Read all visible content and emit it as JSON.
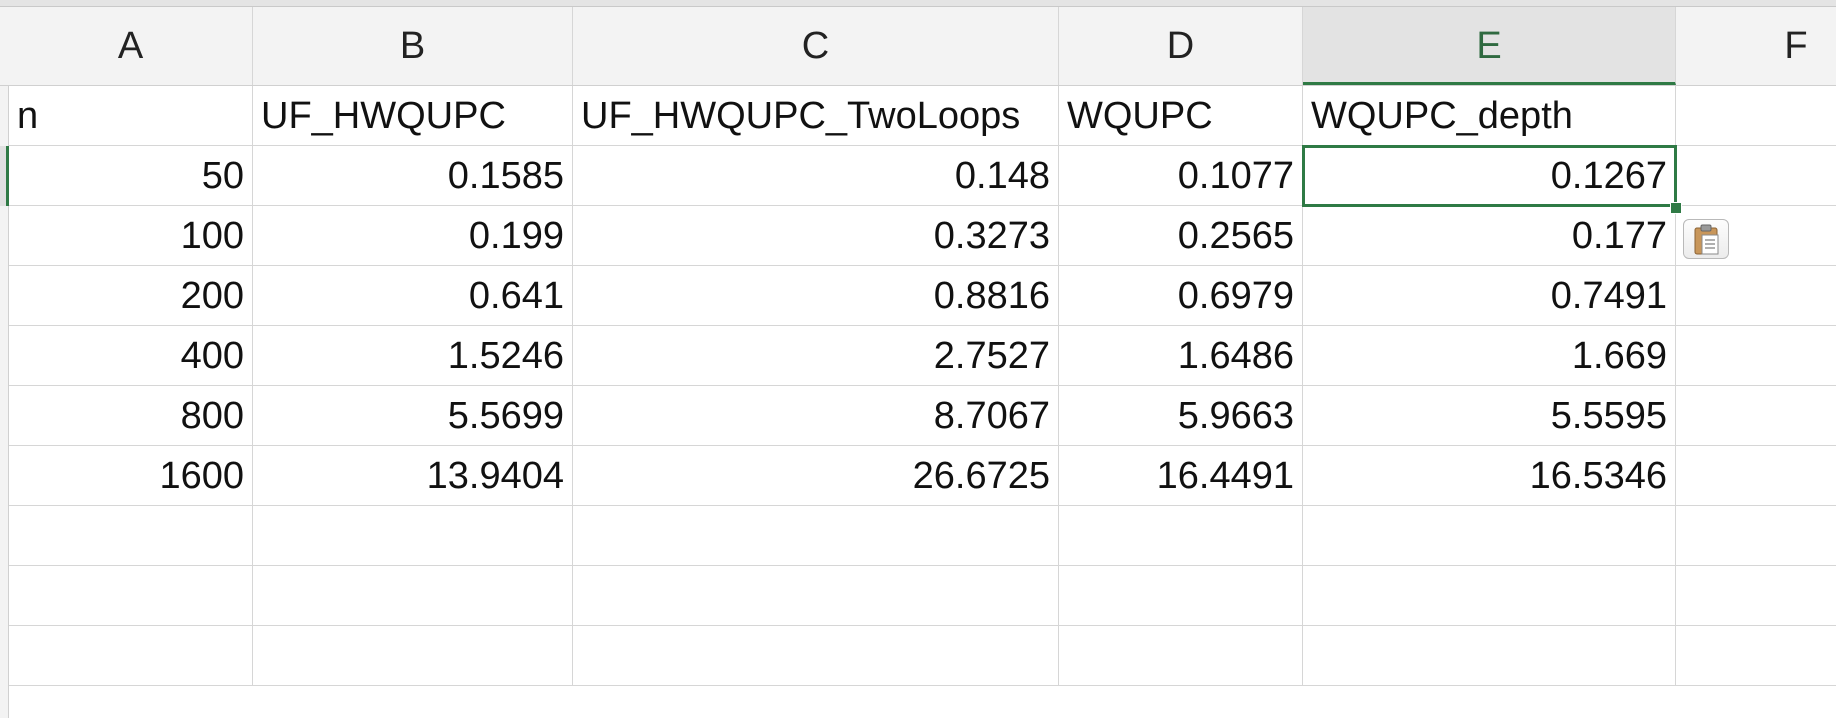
{
  "columns": [
    "A",
    "B",
    "C",
    "D",
    "E",
    "F"
  ],
  "selected_column": "E",
  "rows": [
    [
      "n",
      "UF_HWQUPC",
      "UF_HWQUPC_TwoLoops",
      "WQUPC",
      "WQUPC_depth",
      ""
    ],
    [
      "50",
      "0.1585",
      "0.148",
      "0.1077",
      "0.1267",
      ""
    ],
    [
      "100",
      "0.199",
      "0.3273",
      "0.2565",
      "0.177",
      ""
    ],
    [
      "200",
      "0.641",
      "0.8816",
      "0.6979",
      "0.7491",
      ""
    ],
    [
      "400",
      "1.5246",
      "2.7527",
      "1.6486",
      "1.669",
      ""
    ],
    [
      "800",
      "5.5699",
      "8.7067",
      "5.9663",
      "5.5595",
      ""
    ],
    [
      "1600",
      "13.9404",
      "26.6725",
      "16.4491",
      "16.5346",
      ""
    ],
    [
      "",
      "",
      "",
      "",
      "",
      ""
    ],
    [
      "",
      "",
      "",
      "",
      "",
      ""
    ],
    [
      "",
      "",
      "",
      "",
      "",
      ""
    ]
  ],
  "selected_cell": "E2",
  "paste_options_icon": "clipboard-icon",
  "colors": {
    "selection": "#2f7a45",
    "header_bg": "#f3f3f3",
    "gridline": "#d6d6d6"
  }
}
